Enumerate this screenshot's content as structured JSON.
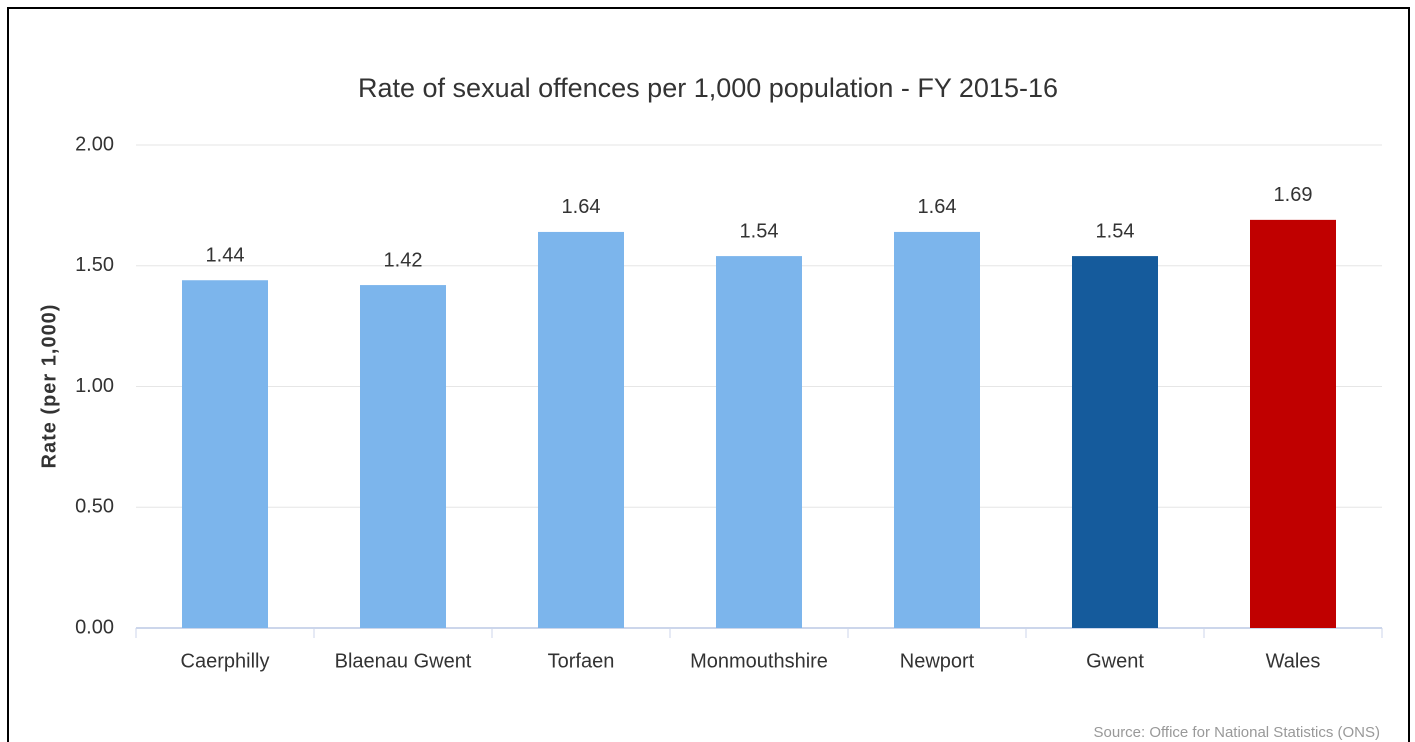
{
  "chart_data": {
    "type": "bar",
    "title": "Rate of sexual offences per 1,000 population - FY 2015-16",
    "y_label": "Rate (per 1,000)",
    "source": "Source: Office for National Statistics (ONS)",
    "categories": [
      "Caerphilly",
      "Blaenau Gwent",
      "Torfaen",
      "Monmouthshire",
      "Newport",
      "Gwent",
      "Wales"
    ],
    "values": [
      1.44,
      1.42,
      1.64,
      1.54,
      1.64,
      1.54,
      1.69
    ],
    "colors": [
      "#7cb5ec",
      "#7cb5ec",
      "#7cb5ec",
      "#7cb5ec",
      "#7cb5ec",
      "#155b9c",
      "#c00000"
    ],
    "ylim": [
      0,
      2
    ],
    "yticks": [
      {
        "value": 0,
        "label": "0.00"
      },
      {
        "value": 0.5,
        "label": "0.50"
      },
      {
        "value": 1,
        "label": "1.00"
      },
      {
        "value": 1.5,
        "label": "1.50"
      },
      {
        "value": 2,
        "label": "2.00"
      }
    ],
    "grid": true
  }
}
